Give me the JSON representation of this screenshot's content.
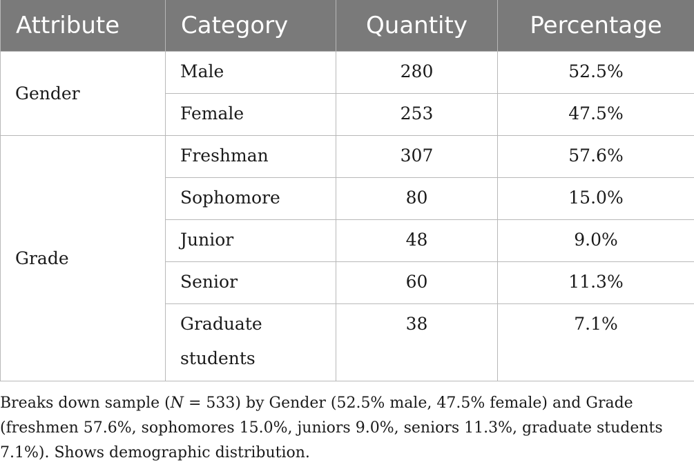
{
  "table": {
    "headers": [
      "Attribute",
      "Category",
      "Quantity",
      "Percentage"
    ],
    "groups": [
      {
        "attribute": "Gender",
        "rows": [
          {
            "category": "Male",
            "quantity": "280",
            "percentage": "52.5%"
          },
          {
            "category": "Female",
            "quantity": "253",
            "percentage": "47.5%"
          }
        ]
      },
      {
        "attribute": "Grade",
        "rows": [
          {
            "category": "Freshman",
            "quantity": "307",
            "percentage": "57.6%"
          },
          {
            "category": "Sophomore",
            "quantity": "80",
            "percentage": "15.0%"
          },
          {
            "category": "Junior",
            "quantity": "48",
            "percentage": "9.0%"
          },
          {
            "category": "Senior",
            "quantity": "60",
            "percentage": "11.3%"
          },
          {
            "category": "Graduate students",
            "quantity": "38",
            "percentage": "7.1%"
          }
        ]
      }
    ]
  },
  "footnote": {
    "part1": "Breaks down sample (",
    "n_symbol": "N",
    "part2": " = 533) by Gender (52.5% male, 47.5% female) and Grade (freshmen 57.6%, sophomores 15.0%, juniors 9.0%, seniors 11.3%, graduate students 7.1%). Shows demographic distribution."
  },
  "colors": {
    "header_bg": "#7a7a7a",
    "header_text": "#ffffff",
    "border": "#b8b8b8"
  }
}
